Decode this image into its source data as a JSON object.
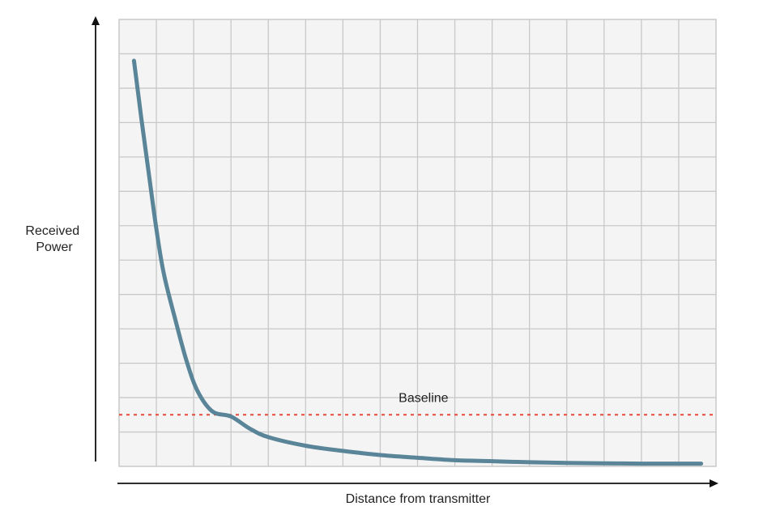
{
  "chart_data": {
    "type": "line",
    "title": "",
    "xlabel": "Distance from transmitter",
    "ylabel_lines": [
      "Received",
      "Power"
    ],
    "grid": true,
    "xlim": [
      0,
      16
    ],
    "ylim": [
      0,
      13
    ],
    "series": [
      {
        "color": "#5a8599",
        "x": [
          0.4,
          0.6,
          0.8,
          1.0,
          1.2,
          1.5,
          1.8,
          2.1,
          2.5,
          3.0,
          3.5,
          4.0,
          5.0,
          6.0,
          7.0,
          8.0,
          9.0,
          10.0,
          11.0,
          12.0,
          13.0,
          14.0,
          15.0,
          15.6
        ],
        "y": [
          11.8,
          10.1,
          8.5,
          6.9,
          5.6,
          4.3,
          3.1,
          2.2,
          1.6,
          1.45,
          1.1,
          0.85,
          0.6,
          0.45,
          0.33,
          0.25,
          0.18,
          0.15,
          0.12,
          0.1,
          0.09,
          0.08,
          0.08,
          0.08
        ]
      }
    ],
    "baseline": {
      "label": "Baseline",
      "value": 1.5,
      "color": "#e8483a"
    },
    "colors": {
      "grid": "#c8c8c8",
      "plot_background": "#f4f4f4",
      "axis": "#111111"
    }
  }
}
